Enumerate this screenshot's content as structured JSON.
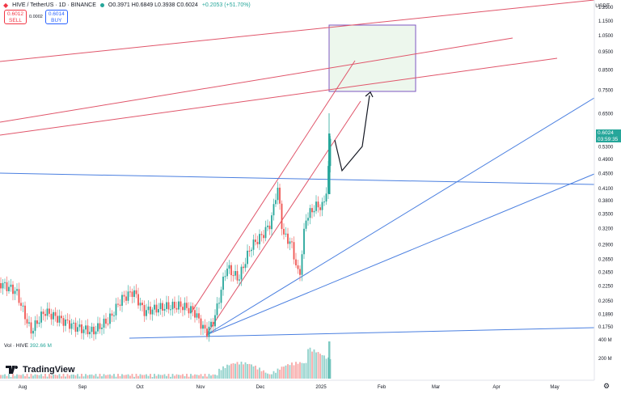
{
  "header": {
    "symbol": "HIVE / TetherUS · 1D · BINANCE",
    "ohlc": "O0.3971 H0.6849 L0.3938 C0.6024",
    "change": "+0.2053 (+51.70%)"
  },
  "trade": {
    "sell_price": "0.6012",
    "sell_label": "SELL",
    "spread": "0.0002",
    "buy_price": "0.6014",
    "buy_label": "BUY"
  },
  "volume": {
    "label": "Vol · HIVE",
    "value": "392.66 M"
  },
  "brand": {
    "name": "TradingView"
  },
  "axis": {
    "currency": "USDT",
    "current_price": "0.6024",
    "countdown": "03:59:35"
  },
  "colors": {
    "up": "#26a69a",
    "down": "#ef5350",
    "trend_red": "#e0556a",
    "trend_blue": "#4a7fe0",
    "target_box": "#e8f5e9"
  },
  "chart_data": {
    "type": "candlestick",
    "y_scale": "log",
    "y_ticks": [
      "1.2500",
      "1.1500",
      "1.0500",
      "0.9500",
      "0.8500",
      "0.7500",
      "0.6500",
      "0.5300",
      "0.4900",
      "0.4500",
      "0.4100",
      "0.3800",
      "0.3500",
      "0.3200",
      "0.2900",
      "0.2650",
      "0.2450",
      "0.2250",
      "0.2050",
      "0.1890",
      "0.1750"
    ],
    "x_ticks": [
      "Aug",
      "Sep",
      "Oct",
      "Nov",
      "Dec",
      "2025",
      "Feb",
      "Mar",
      "Apr",
      "May"
    ],
    "volume_ticks": [
      "400 M",
      "200 M"
    ],
    "annotations": {
      "target_box_price_range": [
        0.78,
        1.2
      ],
      "projection_path_prices": [
        0.59,
        0.47,
        0.54,
        0.78
      ]
    }
  }
}
